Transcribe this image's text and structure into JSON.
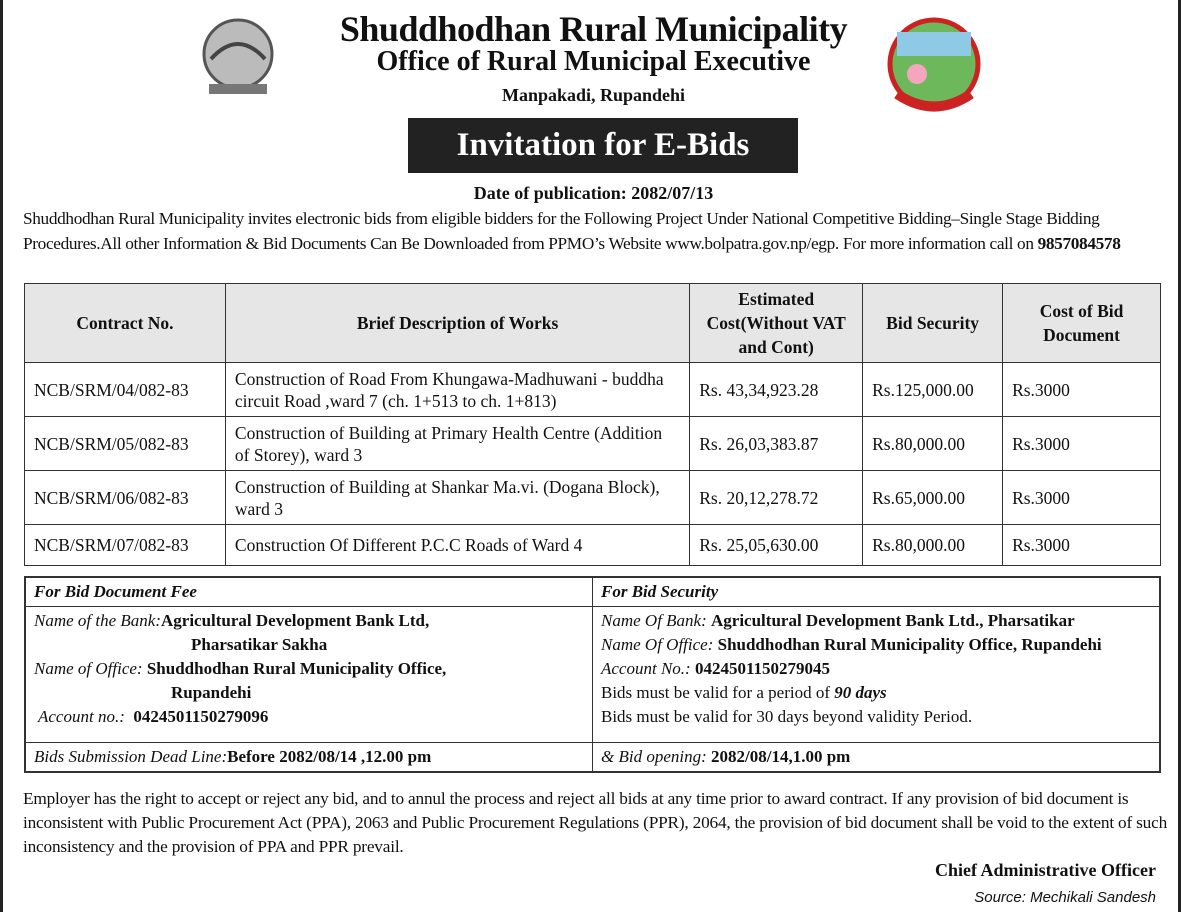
{
  "header": {
    "title": "Shuddhodhan Rural Municipality",
    "subtitle": "Office of Rural Municipal Executive",
    "address": "Manpakadi, Rupandehi",
    "banner": "Invitation for E-Bids",
    "publication_date": "Date of publication: 2082/07/13"
  },
  "intro": {
    "text": "Shuddhodhan Rural Municipality invites electronic bids from eligible bidders for the Following Project Under National Competitive Bidding–Single Stage Bidding Procedures.All other Information & Bid Documents Can Be Downloaded from PPMO’s Website www.bolpatra.gov.np/egp. For more information call on ",
    "phone": "9857084578"
  },
  "table": {
    "headers": [
      "Contract No.",
      "Brief Description of Works",
      "Estimated Cost(Without VAT and Cont)",
      "Bid Security",
      "Cost of Bid Document"
    ],
    "rows": [
      [
        "NCB/SRM/04/082-83",
        "Construction of Road From Khungawa-Madhuwani - buddha circuit Road ,ward 7   (ch. 1+513 to ch. 1+813)",
        "Rs.  43,34,923.28",
        "Rs.125,000.00",
        "Rs.3000"
      ],
      [
        "NCB/SRM/05/082-83",
        "Construction of  Building at Primary Health Centre  (Addition of Storey), ward 3",
        "Rs.  26,03,383.87",
        "Rs.80,000.00",
        "Rs.3000"
      ],
      [
        "NCB/SRM/06/082-83",
        "Construction of  Building at Shankar  Ma.vi. (Dogana Block), ward 3",
        "Rs.  20,12,278.72",
        "Rs.65,000.00",
        "Rs.3000"
      ],
      [
        "NCB/SRM/07/082-83",
        "Construction Of  Different P.C.C Roads of  Ward 4",
        "Rs. 25,05,630.00",
        "Rs.80,000.00",
        "Rs.3000"
      ]
    ]
  },
  "bank": {
    "fee": {
      "heading": "For Bid Document Fee",
      "bank_label": "Name of the Bank:",
      "bank": "Agricultural Development Bank Ltd,",
      "bank2": "Pharsatikar Sakha",
      "office_label": "Name of Office:",
      "office": "Shuddhodhan Rural Municipality Office,",
      "office2": "Rupandehi",
      "account_label": "Account no.:",
      "account": "0424501150279096",
      "deadline_label": "Bids Submission Dead Line:",
      "deadline": "Before 2082/08/14 ,12.00 pm"
    },
    "security": {
      "heading": "For Bid Security",
      "bank_label": "Name Of Bank:",
      "bank": "Agricultural Development Bank Ltd., Pharsatikar",
      "office_label": "Name Of Office:",
      "office": "Shuddhodhan Rural Municipality Office, Rupandehi",
      "account_label": "Account No.:",
      "account": "0424501150279045",
      "valid1": "Bids must be valid for a period of ",
      "valid1_days": "90 days",
      "valid2": "Bids must be valid for 30 days beyond validity Period.",
      "opening_label": "& Bid opening:",
      "opening": "2082/08/14,1.00 pm"
    }
  },
  "footer": {
    "text": "Employer has the right to accept or reject any bid, and to annul the process and reject all bids at any time prior to award contract. If any provision of bid document is inconsistent with Public Procurement Act (PPA), 2063 and Public Procurement Regulations (PPR), 2064, the provision of bid document shall be void to the extent of such inconsistency and the provision of PPA and PPR prevail.",
    "signature": "Chief Administrative Officer",
    "source": "Source: Mechikali Sandesh"
  },
  "colors": {
    "banner": "#222222",
    "header_bg": "#e6e6e6"
  }
}
